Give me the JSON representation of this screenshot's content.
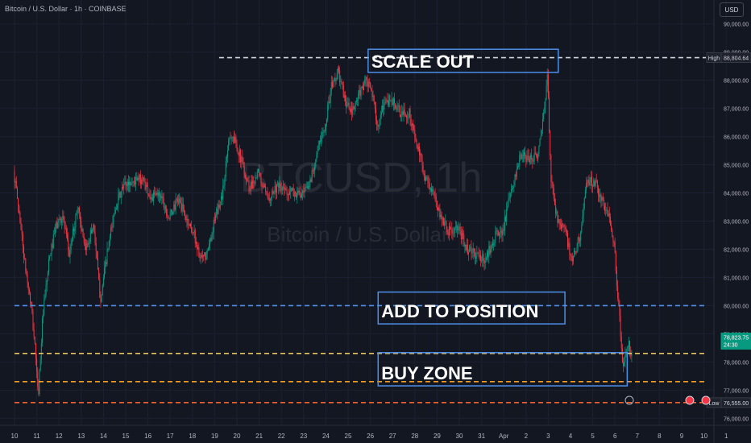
{
  "header": {
    "title": "Bitcoin / U.S. Dollar · 1h · COINBASE"
  },
  "currency_button": "USD",
  "watermark": {
    "symbol": "BTCUSD, 1h",
    "name": "Bitcoin / U.S. Dollar"
  },
  "colors": {
    "bg": "#131722",
    "up": "#089981",
    "down": "#f23645",
    "grid": "#1c2030",
    "text": "#b2b5be",
    "annot": "#4e8fe8"
  },
  "chart_data": {
    "type": "candlestick",
    "ylim": [
      75750,
      90850
    ],
    "xlim": [
      0,
      27.75
    ],
    "y_ticks": [
      {
        "v": 90000,
        "label": "90,000.00"
      },
      {
        "v": 89000,
        "label": "89,000.00"
      },
      {
        "v": 88000,
        "label": "88,000.00"
      },
      {
        "v": 87000,
        "label": "87,000.00"
      },
      {
        "v": 86000,
        "label": "86,000.00"
      },
      {
        "v": 85000,
        "label": "85,000.00"
      },
      {
        "v": 84000,
        "label": "84,000.00"
      },
      {
        "v": 83000,
        "label": "83,000.00"
      },
      {
        "v": 82000,
        "label": "82,000.00"
      },
      {
        "v": 81000,
        "label": "81,000.00"
      },
      {
        "v": 80000,
        "label": "80,000.00"
      },
      {
        "v": 79000,
        "label": "79,000.00"
      },
      {
        "v": 78000,
        "label": "78,000.00"
      },
      {
        "v": 77000,
        "label": "77,000.00"
      },
      {
        "v": 76000,
        "label": "76,000.00"
      }
    ],
    "x_ticks": [
      {
        "i": 0,
        "label": "10"
      },
      {
        "i": 1,
        "label": "11"
      },
      {
        "i": 2,
        "label": "12"
      },
      {
        "i": 3,
        "label": "13"
      },
      {
        "i": 4,
        "label": "14"
      },
      {
        "i": 5,
        "label": "15"
      },
      {
        "i": 6,
        "label": "16"
      },
      {
        "i": 7,
        "label": "17"
      },
      {
        "i": 8,
        "label": "18"
      },
      {
        "i": 9,
        "label": "19"
      },
      {
        "i": 10,
        "label": "20"
      },
      {
        "i": 11,
        "label": "21"
      },
      {
        "i": 12,
        "label": "22"
      },
      {
        "i": 13,
        "label": "23"
      },
      {
        "i": 14,
        "label": "24"
      },
      {
        "i": 15,
        "label": "25"
      },
      {
        "i": 16,
        "label": "26"
      },
      {
        "i": 17,
        "label": "27"
      },
      {
        "i": 18,
        "label": "28"
      },
      {
        "i": 19,
        "label": "29"
      },
      {
        "i": 20,
        "label": "30"
      },
      {
        "i": 21,
        "label": "31"
      },
      {
        "i": 22,
        "label": "Apr"
      },
      {
        "i": 23,
        "label": "2"
      },
      {
        "i": 24,
        "label": "3"
      },
      {
        "i": 25,
        "label": "4"
      },
      {
        "i": 26,
        "label": "5"
      },
      {
        "i": 27,
        "label": "6"
      },
      {
        "i": 28,
        "label": "7"
      },
      {
        "i": 29,
        "label": "8"
      },
      {
        "i": 30,
        "label": "9"
      },
      {
        "i": 31,
        "label": "10"
      },
      {
        "i": 32,
        "label": "1"
      }
    ],
    "path": [
      [
        0,
        84800
      ],
      [
        0.3,
        83000
      ],
      [
        0.5,
        81500
      ],
      [
        0.8,
        79900
      ],
      [
        1.0,
        78200
      ],
      [
        1.1,
        76700
      ],
      [
        1.3,
        79500
      ],
      [
        1.6,
        81600
      ],
      [
        1.9,
        82800
      ],
      [
        2.2,
        83200
      ],
      [
        2.5,
        81800
      ],
      [
        2.9,
        83600
      ],
      [
        3.2,
        81900
      ],
      [
        3.6,
        82900
      ],
      [
        3.9,
        80200
      ],
      [
        4.2,
        81800
      ],
      [
        4.6,
        83600
      ],
      [
        5.0,
        84300
      ],
      [
        5.4,
        84400
      ],
      [
        5.8,
        84500
      ],
      [
        6.2,
        83800
      ],
      [
        6.6,
        84000
      ],
      [
        7.0,
        83100
      ],
      [
        7.4,
        83800
      ],
      [
        7.8,
        83000
      ],
      [
        8.1,
        82600
      ],
      [
        8.4,
        81600
      ],
      [
        8.7,
        81800
      ],
      [
        9.0,
        82900
      ],
      [
        9.4,
        84000
      ],
      [
        9.7,
        86100
      ],
      [
        10.0,
        85800
      ],
      [
        10.3,
        85000
      ],
      [
        10.6,
        84200
      ],
      [
        11.0,
        84700
      ],
      [
        11.4,
        83800
      ],
      [
        11.8,
        84200
      ],
      [
        12.2,
        84100
      ],
      [
        12.6,
        84000
      ],
      [
        13.0,
        83900
      ],
      [
        13.3,
        84300
      ],
      [
        13.6,
        85300
      ],
      [
        14.0,
        86400
      ],
      [
        14.3,
        87800
      ],
      [
        14.6,
        88300
      ],
      [
        14.9,
        87300
      ],
      [
        15.2,
        86800
      ],
      [
        15.5,
        87400
      ],
      [
        15.8,
        88000
      ],
      [
        16.1,
        87600
      ],
      [
        16.4,
        86300
      ],
      [
        16.7,
        87300
      ],
      [
        17.0,
        87300
      ],
      [
        17.4,
        86800
      ],
      [
        17.8,
        86800
      ],
      [
        18.1,
        85800
      ],
      [
        18.5,
        84600
      ],
      [
        18.9,
        83900
      ],
      [
        19.2,
        83200
      ],
      [
        19.6,
        82600
      ],
      [
        20.0,
        82700
      ],
      [
        20.4,
        82000
      ],
      [
        20.8,
        81800
      ],
      [
        21.2,
        81600
      ],
      [
        21.6,
        82400
      ],
      [
        22.0,
        82700
      ],
      [
        22.4,
        84100
      ],
      [
        22.8,
        85300
      ],
      [
        23.2,
        85200
      ],
      [
        23.6,
        85400
      ],
      [
        23.9,
        87100
      ],
      [
        24.0,
        88300
      ],
      [
        24.15,
        84600
      ],
      [
        24.4,
        83200
      ],
      [
        24.8,
        82700
      ],
      [
        25.1,
        81500
      ],
      [
        25.5,
        82600
      ],
      [
        25.8,
        84500
      ],
      [
        26.2,
        84300
      ],
      [
        26.5,
        83600
      ],
      [
        26.8,
        83100
      ],
      [
        27.0,
        82300
      ],
      [
        27.2,
        80000
      ],
      [
        27.4,
        77800
      ],
      [
        27.6,
        78700
      ],
      [
        27.75,
        78400
      ]
    ],
    "levels": [
      {
        "name": "high-dashed-line",
        "value": 88804.64,
        "color": "#d1d4dc",
        "x0": 9.2
      },
      {
        "name": "add-dashed-line",
        "value": 80000,
        "color": "#4e8fe8",
        "x0": 0
      },
      {
        "name": "buy-upper-dashed-line",
        "value": 78300,
        "color": "#e8c35e",
        "x0": 0
      },
      {
        "name": "buy-lower-dashed-line",
        "value": 77300,
        "color": "#f59d20",
        "x0": 0
      },
      {
        "name": "low-dashed-line",
        "value": 76555,
        "color": "#f0632e",
        "x0": 0
      }
    ],
    "annotations": [
      {
        "name": "scale-out-box",
        "text": "SCALE OUT",
        "top": 89100,
        "bottom": 88280,
        "x0": 15.9,
        "x1": 24.45
      },
      {
        "name": "add-to-position-box",
        "text": "ADD TO POSITION",
        "top": 80480,
        "bottom": 79350,
        "x0": 16.35,
        "x1": 24.75
      },
      {
        "name": "buy-zone-box",
        "text": "BUY ZONE",
        "top": 78330,
        "bottom": 77150,
        "x0": 16.35,
        "x1": 27.55
      }
    ],
    "price_labels": [
      {
        "name": "high-label",
        "prefix": "High",
        "text": "88,804.64",
        "value": 88804.64,
        "bg": "#1e222d",
        "border": "#363a45",
        "color": "#d1d4dc"
      },
      {
        "name": "last-price-label",
        "prefix": "",
        "text": "78,823.75",
        "sub": "24:30",
        "value": 78823.75,
        "bg": "#089981",
        "border": "#089981",
        "color": "#ffffff"
      },
      {
        "name": "low-label",
        "prefix": "Low",
        "text": "76,555.00",
        "value": 76555,
        "bg": "#1e222d",
        "border": "#363a45",
        "color": "#d1d4dc"
      }
    ]
  }
}
